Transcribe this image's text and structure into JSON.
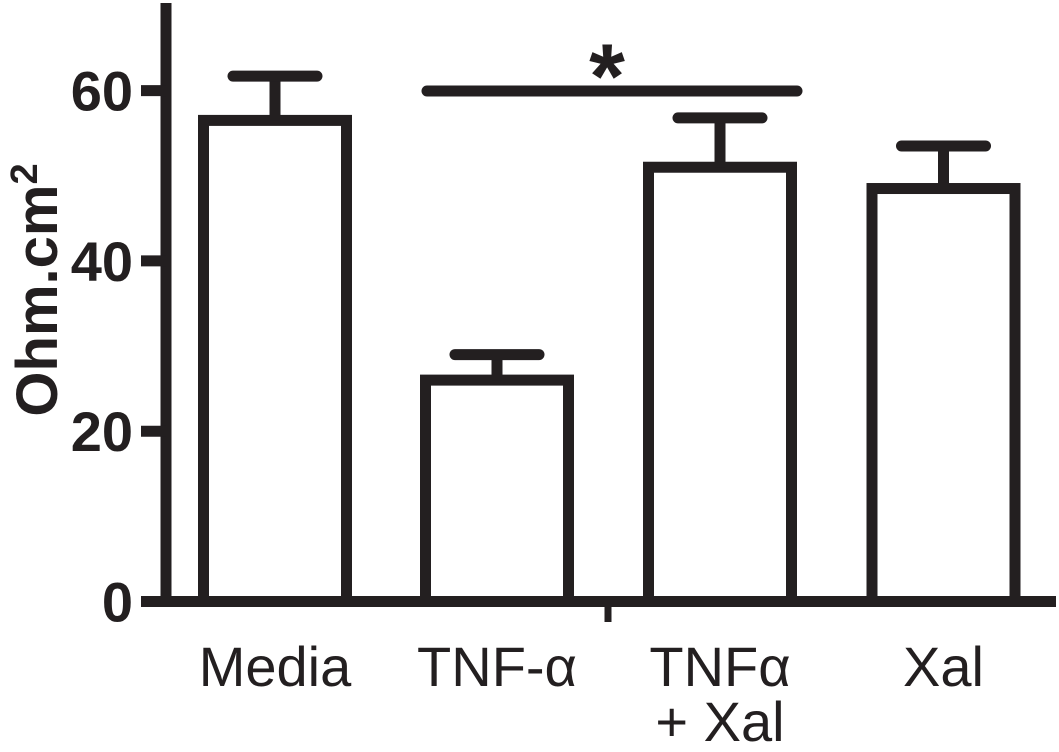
{
  "figure": {
    "description": "Bar chart with upper error bars and significance marker",
    "background_color": "#ffffff",
    "ink_color": "#231f20"
  },
  "chart_data": {
    "type": "bar",
    "title": "",
    "xlabel": "",
    "ylabel": "Ohm.cm²",
    "ylabel_parts": {
      "base": "Ohm.cm",
      "sup": "2"
    },
    "categories": [
      "Media",
      "TNF-α",
      "TNFα + Xal",
      "Xal"
    ],
    "category_label_lines": [
      [
        "Media"
      ],
      [
        "TNF-α"
      ],
      [
        "TNFα",
        "+ Xal"
      ],
      [
        "Xal"
      ]
    ],
    "values": [
      56.5,
      26,
      51,
      48.5
    ],
    "errors_upper": [
      5.2,
      3,
      5.8,
      5
    ],
    "error_bar_style": "upper error bars with rounded caps",
    "bar_fill": "#ffffff",
    "bar_stroke": "#231f20",
    "yticks": [
      0,
      20,
      40,
      60
    ],
    "ylim": [
      0,
      70
    ],
    "grid": false,
    "legend": "none",
    "annotations": {
      "significance": {
        "label": "*",
        "from_category": "TNF-α",
        "to_category": "TNFα + Xal",
        "from_index": 1,
        "to_index": 2
      }
    }
  }
}
